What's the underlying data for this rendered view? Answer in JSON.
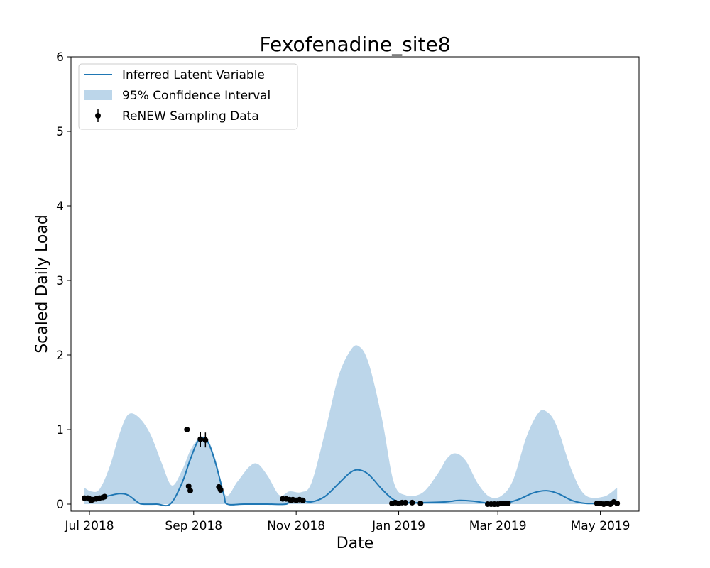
{
  "chart_data": {
    "type": "line",
    "title": "Fexofenadine_site8",
    "xlabel": "Date",
    "ylabel": "Scaled Daily Load",
    "ylim": [
      0,
      6
    ],
    "xlim": [
      "2018-06-20",
      "2019-05-24"
    ],
    "x_ticks": [
      {
        "date": "2018-07-01",
        "label": "Jul 2018"
      },
      {
        "date": "2018-09-01",
        "label": "Sep 2018"
      },
      {
        "date": "2018-11-01",
        "label": "Nov 2018"
      },
      {
        "date": "2019-01-01",
        "label": "Jan 2019"
      },
      {
        "date": "2019-03-01",
        "label": "Mar 2019"
      },
      {
        "date": "2019-05-01",
        "label": "May 2019"
      }
    ],
    "y_ticks": [
      0,
      1,
      2,
      3,
      4,
      5,
      6
    ],
    "grid": false,
    "legend_position": "top-left",
    "colors": {
      "line": "#1f77b4",
      "band": "#bcd6ea",
      "points": "#000000"
    },
    "series": [
      {
        "name": "Inferred Latent Variable",
        "kind": "line",
        "points": [
          [
            "2018-06-28",
            0.07
          ],
          [
            "2018-07-05",
            0.08
          ],
          [
            "2018-07-12",
            0.11
          ],
          [
            "2018-07-19",
            0.14
          ],
          [
            "2018-07-24",
            0.12
          ],
          [
            "2018-07-30",
            0.02
          ],
          [
            "2018-08-02",
            0.0
          ],
          [
            "2018-08-10",
            0.0
          ],
          [
            "2018-08-18",
            0.0
          ],
          [
            "2018-08-25",
            0.28
          ],
          [
            "2018-08-30",
            0.6
          ],
          [
            "2018-09-04",
            0.86
          ],
          [
            "2018-09-09",
            0.85
          ],
          [
            "2018-09-14",
            0.55
          ],
          [
            "2018-09-19",
            0.12
          ],
          [
            "2018-09-21",
            0.0
          ],
          [
            "2018-10-01",
            0.0
          ],
          [
            "2018-10-15",
            0.0
          ],
          [
            "2018-10-26",
            0.0
          ],
          [
            "2018-10-28",
            0.06
          ],
          [
            "2018-11-04",
            0.05
          ],
          [
            "2018-11-10",
            0.03
          ],
          [
            "2018-11-18",
            0.1
          ],
          [
            "2018-11-26",
            0.27
          ],
          [
            "2018-12-03",
            0.42
          ],
          [
            "2018-12-08",
            0.46
          ],
          [
            "2018-12-14",
            0.4
          ],
          [
            "2018-12-22",
            0.2
          ],
          [
            "2018-12-29",
            0.06
          ],
          [
            "2019-01-05",
            0.02
          ],
          [
            "2019-01-15",
            0.02
          ],
          [
            "2019-01-29",
            0.03
          ],
          [
            "2019-02-06",
            0.05
          ],
          [
            "2019-02-14",
            0.04
          ],
          [
            "2019-02-24",
            0.01
          ],
          [
            "2019-03-03",
            0.0
          ],
          [
            "2019-03-13",
            0.06
          ],
          [
            "2019-03-22",
            0.15
          ],
          [
            "2019-03-30",
            0.18
          ],
          [
            "2019-04-06",
            0.14
          ],
          [
            "2019-04-14",
            0.05
          ],
          [
            "2019-04-22",
            0.01
          ],
          [
            "2019-05-03",
            0.01
          ],
          [
            "2019-05-10",
            0.01
          ]
        ]
      },
      {
        "name": "95% Confidence Interval",
        "kind": "band",
        "points": [
          [
            "2018-06-28",
            0.0,
            0.22
          ],
          [
            "2018-07-02",
            0.0,
            0.17
          ],
          [
            "2018-07-07",
            0.0,
            0.2
          ],
          [
            "2018-07-13",
            0.0,
            0.5
          ],
          [
            "2018-07-19",
            0.0,
            0.95
          ],
          [
            "2018-07-24",
            0.0,
            1.2
          ],
          [
            "2018-07-30",
            0.0,
            1.17
          ],
          [
            "2018-08-06",
            0.0,
            0.95
          ],
          [
            "2018-08-13",
            0.0,
            0.55
          ],
          [
            "2018-08-19",
            0.0,
            0.25
          ],
          [
            "2018-08-25",
            0.0,
            0.45
          ],
          [
            "2018-08-30",
            0.0,
            0.72
          ],
          [
            "2018-09-04",
            0.0,
            0.88
          ],
          [
            "2018-09-09",
            0.0,
            0.88
          ],
          [
            "2018-09-14",
            0.0,
            0.6
          ],
          [
            "2018-09-20",
            0.0,
            0.12
          ],
          [
            "2018-09-27",
            0.0,
            0.3
          ],
          [
            "2018-10-04",
            0.0,
            0.5
          ],
          [
            "2018-10-09",
            0.0,
            0.54
          ],
          [
            "2018-10-15",
            0.0,
            0.38
          ],
          [
            "2018-10-22",
            0.0,
            0.12
          ],
          [
            "2018-10-28",
            0.0,
            0.17
          ],
          [
            "2018-11-04",
            0.0,
            0.16
          ],
          [
            "2018-11-10",
            0.0,
            0.28
          ],
          [
            "2018-11-18",
            0.0,
            0.95
          ],
          [
            "2018-11-26",
            0.0,
            1.7
          ],
          [
            "2018-12-03",
            0.0,
            2.05
          ],
          [
            "2018-12-08",
            0.0,
            2.12
          ],
          [
            "2018-12-14",
            0.0,
            1.9
          ],
          [
            "2018-12-22",
            0.0,
            1.15
          ],
          [
            "2018-12-29",
            0.0,
            0.3
          ],
          [
            "2019-01-05",
            0.0,
            0.12
          ],
          [
            "2019-01-15",
            0.0,
            0.15
          ],
          [
            "2019-01-24",
            0.0,
            0.4
          ],
          [
            "2019-01-30",
            0.0,
            0.62
          ],
          [
            "2019-02-04",
            0.0,
            0.68
          ],
          [
            "2019-02-10",
            0.0,
            0.58
          ],
          [
            "2019-02-17",
            0.0,
            0.28
          ],
          [
            "2019-02-24",
            0.0,
            0.1
          ],
          [
            "2019-03-03",
            0.0,
            0.11
          ],
          [
            "2019-03-10",
            0.0,
            0.32
          ],
          [
            "2019-03-18",
            0.0,
            0.9
          ],
          [
            "2019-03-25",
            0.0,
            1.22
          ],
          [
            "2019-03-30",
            0.0,
            1.24
          ],
          [
            "2019-04-05",
            0.0,
            1.05
          ],
          [
            "2019-04-14",
            0.0,
            0.45
          ],
          [
            "2019-04-22",
            0.0,
            0.12
          ],
          [
            "2019-05-03",
            0.0,
            0.1
          ],
          [
            "2019-05-11",
            0.0,
            0.22
          ]
        ]
      },
      {
        "name": "ReNEW Sampling Data",
        "kind": "scatter",
        "points": [
          [
            "2018-06-28",
            0.08,
            0
          ],
          [
            "2018-06-30",
            0.08,
            0
          ],
          [
            "2018-07-01",
            0.07,
            0
          ],
          [
            "2018-07-02",
            0.05,
            0
          ],
          [
            "2018-07-03",
            0.06,
            0
          ],
          [
            "2018-07-05",
            0.07,
            0
          ],
          [
            "2018-07-07",
            0.08,
            0
          ],
          [
            "2018-07-09",
            0.09,
            0
          ],
          [
            "2018-07-10",
            0.1,
            0
          ],
          [
            "2018-08-28",
            1.0,
            0
          ],
          [
            "2018-08-29",
            0.24,
            0
          ],
          [
            "2018-08-30",
            0.18,
            0
          ],
          [
            "2018-09-05",
            0.87,
            0.1
          ],
          [
            "2018-09-08",
            0.86,
            0.1
          ],
          [
            "2018-09-16",
            0.23,
            0
          ],
          [
            "2018-09-17",
            0.19,
            0
          ],
          [
            "2018-10-24",
            0.07,
            0
          ],
          [
            "2018-10-26",
            0.07,
            0
          ],
          [
            "2018-10-28",
            0.06,
            0
          ],
          [
            "2018-10-29",
            0.05,
            0
          ],
          [
            "2018-10-30",
            0.06,
            0
          ],
          [
            "2018-11-01",
            0.05,
            0
          ],
          [
            "2018-11-03",
            0.06,
            0
          ],
          [
            "2018-11-05",
            0.05,
            0
          ],
          [
            "2018-12-28",
            0.01,
            0
          ],
          [
            "2018-12-30",
            0.02,
            0
          ],
          [
            "2019-01-01",
            0.01,
            0
          ],
          [
            "2019-01-03",
            0.02,
            0
          ],
          [
            "2019-01-05",
            0.02,
            0
          ],
          [
            "2019-01-09",
            0.02,
            0
          ],
          [
            "2019-01-14",
            0.01,
            0
          ],
          [
            "2019-02-23",
            0.0,
            0
          ],
          [
            "2019-02-25",
            0.0,
            0
          ],
          [
            "2019-02-27",
            0.0,
            0
          ],
          [
            "2019-03-01",
            0.0,
            0
          ],
          [
            "2019-03-03",
            0.01,
            0
          ],
          [
            "2019-03-05",
            0.01,
            0
          ],
          [
            "2019-03-07",
            0.01,
            0
          ],
          [
            "2019-04-29",
            0.01,
            0
          ],
          [
            "2019-05-01",
            0.01,
            0
          ],
          [
            "2019-05-03",
            0.0,
            0
          ],
          [
            "2019-05-05",
            0.01,
            0
          ],
          [
            "2019-05-07",
            0.0,
            0
          ],
          [
            "2019-05-09",
            0.03,
            0
          ],
          [
            "2019-05-11",
            0.01,
            0
          ]
        ]
      }
    ]
  }
}
